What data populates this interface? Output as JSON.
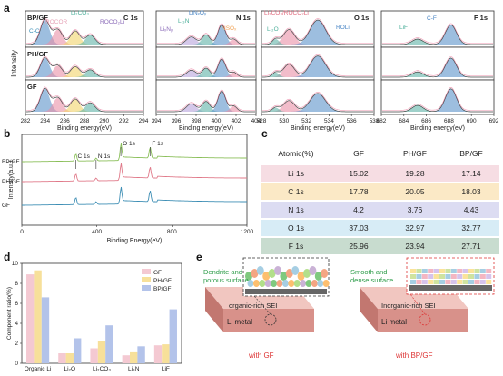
{
  "labels": {
    "a": "a",
    "b": "b",
    "c": "c",
    "d": "d",
    "e": "e"
  },
  "panel_a": {
    "ylabel": "Intensity",
    "xlabel": "Binding energy(eV)",
    "rows": [
      "BP/GF",
      "PH/GF",
      "GF"
    ],
    "subpanels": [
      {
        "element": "C 1s",
        "ticks": [
          "282",
          "284",
          "286",
          "288",
          "290",
          "292",
          "294"
        ],
        "annotations": {
          "cc": "C-C",
          "rocor": "ROCOR",
          "li2co3": "Li₂CO₃",
          "roco2li": "ROCO₂Li"
        }
      },
      {
        "element": "N 1s",
        "ticks": [
          "394",
          "396",
          "398",
          "400",
          "402",
          "404"
        ],
        "annotations": {
          "linxoy": "LiNₓOᵧ",
          "li3n": "Li₃N",
          "lin": "LiₓNᵧ",
          "nso": "NSOₓ"
        }
      },
      {
        "element": "O 1s",
        "ticks": [
          "528",
          "530",
          "532",
          "534",
          "536",
          "538"
        ],
        "annotations": {
          "li2co3": "Li₂CO₃/ROCO₂Li",
          "li2o": "Li₂O",
          "roli": "ROLi"
        }
      },
      {
        "element": "F 1s",
        "ticks": [
          "682",
          "684",
          "686",
          "688",
          "690",
          "692"
        ],
        "annotations": {
          "lif": "LiF",
          "cf": "C-F"
        }
      }
    ]
  },
  "panel_b": {
    "ylabel": "Intensity(a.u.)",
    "xlabel": "Binding Energy(eV)",
    "ticks": [
      "0",
      "400",
      "800",
      "1200"
    ],
    "series": [
      {
        "name": "BP/GF",
        "color": "#8bbf5a"
      },
      {
        "name": "PH/GF",
        "color": "#e07a8a"
      },
      {
        "name": "GF",
        "color": "#3f8fb5"
      }
    ],
    "peaks": [
      "C 1s",
      "N 1s",
      "O 1s",
      "F 1s"
    ]
  },
  "panel_c": {
    "headers": [
      "Atomic(%)",
      "GF",
      "PH/GF",
      "BP/GF"
    ],
    "rows": [
      {
        "label": "Li 1s",
        "values": [
          "15.02",
          "19.28",
          "17.14"
        ],
        "color": "#f6dde3"
      },
      {
        "label": "C 1s",
        "values": [
          "17.78",
          "20.05",
          "18.03"
        ],
        "color": "#fbe9c6"
      },
      {
        "label": "N 1s",
        "values": [
          "4.2",
          "3.76",
          "4.43"
        ],
        "color": "#dcdcf2"
      },
      {
        "label": "O 1s",
        "values": [
          "37.03",
          "32.97",
          "32.77"
        ],
        "color": "#d7ecf6"
      },
      {
        "label": "F 1s",
        "values": [
          "25.96",
          "23.94",
          "27.71"
        ],
        "color": "#c8dccf"
      }
    ]
  },
  "chart_data": {
    "type": "bar",
    "ylabel": "Component ratio(%)",
    "categories": [
      "Organic Li",
      "Li₂O",
      "Li₂CO₃",
      "Li₃N",
      "LiF"
    ],
    "ylim": [
      0,
      10
    ],
    "yticks": [
      "0",
      "2",
      "4",
      "6",
      "8",
      "10"
    ],
    "legend_position": "top-right",
    "series": [
      {
        "name": "GF",
        "values": [
          8.9,
          1.0,
          1.5,
          0.8,
          1.8
        ],
        "color": "#f4c9d2"
      },
      {
        "name": "PH/GF",
        "values": [
          9.3,
          1.0,
          2.2,
          1.1,
          1.9
        ],
        "color": "#f7e09a"
      },
      {
        "name": "BP/GF",
        "values": [
          6.6,
          2.5,
          3.8,
          1.7,
          5.4
        ],
        "color": "#b3c3ea"
      }
    ]
  },
  "panel_e": {
    "left_title": "Dendrite and\nporous surface",
    "left_sei": "organic-rich SEI",
    "left_metal": "Li metal",
    "left_caption": "with GF",
    "right_title": "Smooth and\ndense surface",
    "right_sei": "Inorganic-rich SEI",
    "right_metal": "Li metal",
    "right_caption": "with BP/GF"
  }
}
